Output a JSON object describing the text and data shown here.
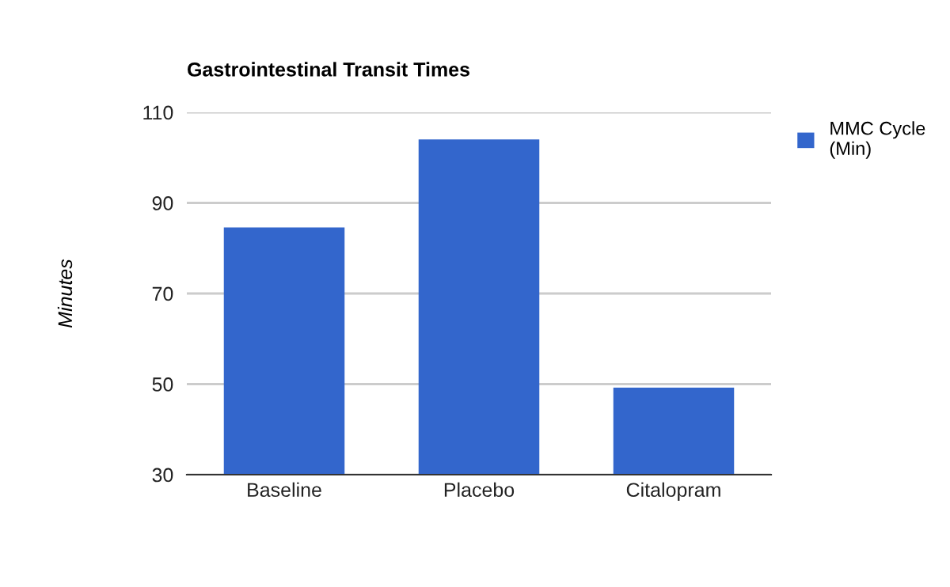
{
  "chart_data": {
    "type": "bar",
    "title": "Gastrointestinal Transit Times",
    "ylabel": "Minutes",
    "categories": [
      "Baseline",
      "Placebo",
      "Citalopram"
    ],
    "series": [
      {
        "name": "MMC Cycle (Min)",
        "color": "#3366cc",
        "values": [
          84.6,
          104,
          49.2
        ]
      }
    ],
    "ylim": [
      30,
      110
    ],
    "yticks": [
      30,
      50,
      70,
      90,
      110
    ],
    "grid": "y",
    "legend": "top right"
  }
}
